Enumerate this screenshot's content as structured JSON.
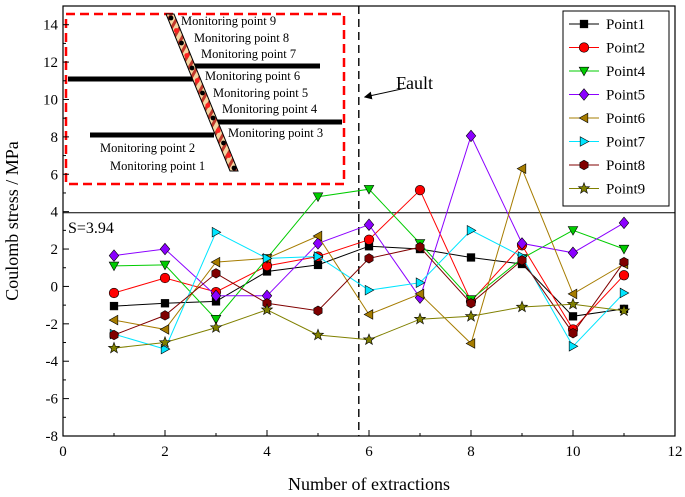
{
  "chart_data": {
    "type": "line",
    "xlabel": "Number of extractions",
    "ylabel": "Coulomb stress / MPa",
    "xlim": [
      0,
      12
    ],
    "ylim": [
      -8,
      15
    ],
    "xticks": [
      0,
      2,
      4,
      6,
      8,
      10,
      12
    ],
    "yticks": [
      -8,
      -6,
      -4,
      -2,
      0,
      2,
      4,
      6,
      8,
      10,
      12,
      14
    ],
    "grid": false,
    "legend_position": "top-right",
    "x": [
      1,
      2,
      3,
      4,
      5,
      6,
      7,
      8,
      9,
      10,
      11
    ],
    "series": [
      {
        "name": "Point1",
        "marker": "square",
        "color": "#000000",
        "values": [
          -1.05,
          -0.9,
          -0.8,
          0.8,
          1.15,
          2.15,
          2.0,
          1.55,
          1.2,
          -1.6,
          -1.2
        ]
      },
      {
        "name": "Point2",
        "marker": "circle",
        "color": "#ff0000",
        "values": [
          -0.35,
          0.45,
          -0.3,
          1.1,
          1.6,
          2.5,
          5.15,
          -0.8,
          2.2,
          -2.3,
          0.6
        ]
      },
      {
        "name": "Point4",
        "marker": "triangle-down",
        "color": "#00cc00",
        "values": [
          1.1,
          1.15,
          -1.75,
          1.5,
          4.8,
          5.2,
          2.3,
          -0.7,
          1.5,
          3.0,
          2.0
        ]
      },
      {
        "name": "Point5",
        "marker": "diamond",
        "color": "#8b00ff",
        "values": [
          1.65,
          2.0,
          -0.5,
          -0.5,
          2.3,
          3.3,
          -0.6,
          8.05,
          2.3,
          1.8,
          3.4
        ]
      },
      {
        "name": "Point6",
        "marker": "triangle-left",
        "color": "#a67c00",
        "values": [
          -1.8,
          -2.3,
          1.3,
          1.5,
          2.7,
          -1.5,
          -0.4,
          -3.05,
          6.3,
          -0.4,
          1.2
        ]
      },
      {
        "name": "Point7",
        "marker": "triangle-right",
        "color": "#00e5ff",
        "values": [
          -2.55,
          -3.35,
          2.9,
          1.5,
          1.6,
          -0.2,
          0.2,
          3.0,
          1.6,
          -3.2,
          -0.35
        ]
      },
      {
        "name": "Point8",
        "marker": "hexagon",
        "color": "#800000",
        "values": [
          -2.6,
          -1.55,
          0.7,
          -0.9,
          -1.3,
          1.5,
          2.1,
          -0.9,
          1.4,
          -2.5,
          1.3
        ]
      },
      {
        "name": "Point9",
        "marker": "star",
        "color": "#808000",
        "values": [
          -3.3,
          -3.0,
          -2.2,
          -1.25,
          -2.6,
          -2.85,
          -1.75,
          -1.6,
          -1.1,
          -0.95,
          -1.3
        ]
      }
    ],
    "annotations": {
      "fault_x": 5.8,
      "fault_label": "Fault",
      "threshold_y": 3.94,
      "threshold_label": "S=3.94"
    },
    "inset": {
      "labels": [
        "Monitoring point 9",
        "Monitoring point 8",
        "Monitoring point 7",
        "Monitoring point 6",
        "Monitoring point 5",
        "Monitoring point 4",
        "Monitoring point 3",
        "Monitoring point 2",
        "Monitoring point 1"
      ]
    }
  }
}
